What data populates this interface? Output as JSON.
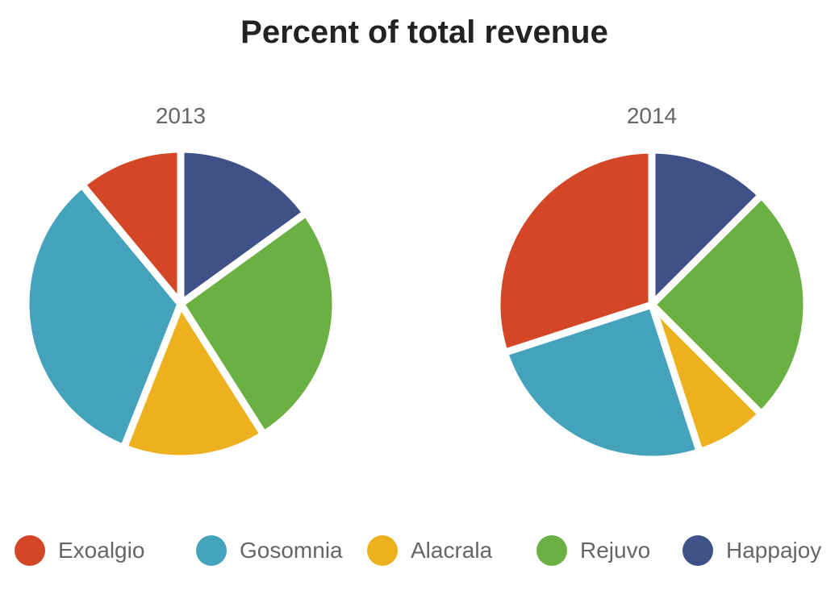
{
  "chart_data": {
    "type": "pie",
    "title": "Percent of total revenue",
    "categories": [
      "Exoalgio",
      "Gosomnia",
      "Alacrala",
      "Rejuvo",
      "Happajoy"
    ],
    "colors": [
      "#d34727",
      "#44a3bb",
      "#edb120",
      "#6bb042",
      "#3f5186"
    ],
    "series": [
      {
        "name": "2013",
        "values": [
          11,
          33,
          15,
          26,
          15
        ]
      },
      {
        "name": "2014",
        "values": [
          30,
          25,
          7.5,
          25,
          12.5
        ]
      }
    ],
    "legend_position": "bottom"
  }
}
